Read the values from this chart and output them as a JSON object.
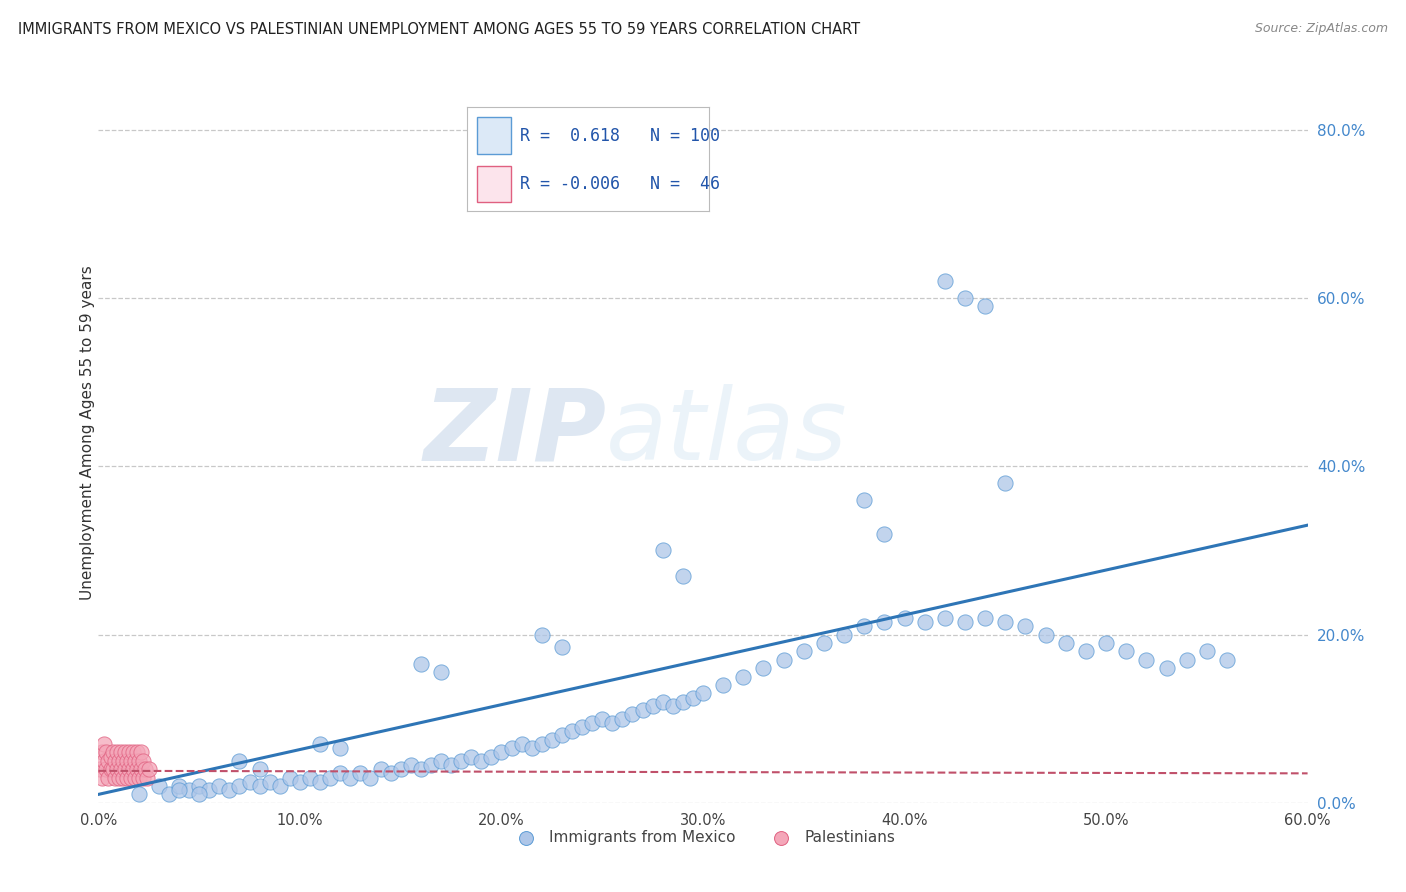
{
  "title": "IMMIGRANTS FROM MEXICO VS PALESTINIAN UNEMPLOYMENT AMONG AGES 55 TO 59 YEARS CORRELATION CHART",
  "source": "Source: ZipAtlas.com",
  "xlabel_blue": "Immigrants from Mexico",
  "xlabel_pink": "Palestinians",
  "ylabel": "Unemployment Among Ages 55 to 59 years",
  "xlim": [
    0.0,
    0.6
  ],
  "ylim": [
    0.0,
    0.88
  ],
  "xticks": [
    0.0,
    0.1,
    0.2,
    0.3,
    0.4,
    0.5,
    0.6
  ],
  "yticks": [
    0.0,
    0.2,
    0.4,
    0.6,
    0.8
  ],
  "ytick_labels": [
    "0.0%",
    "20.0%",
    "40.0%",
    "60.0%",
    "80.0%"
  ],
  "xtick_labels": [
    "0.0%",
    "10.0%",
    "20.0%",
    "30.0%",
    "40.0%",
    "50.0%",
    "60.0%"
  ],
  "R_blue": 0.618,
  "N_blue": 100,
  "R_pink": -0.006,
  "N_pink": 46,
  "watermark_zip": "ZIP",
  "watermark_atlas": "atlas",
  "blue_scatter_color": "#aec6e8",
  "blue_edge_color": "#5b9bd5",
  "pink_scatter_color": "#f4a7b9",
  "pink_edge_color": "#e06080",
  "line_blue_color": "#2e75b6",
  "line_pink_color": "#c0506a",
  "legend_blue_fill": "#dce9f7",
  "legend_pink_fill": "#fce4ec",
  "blue_scatter_x": [
    0.02,
    0.03,
    0.035,
    0.04,
    0.045,
    0.05,
    0.055,
    0.06,
    0.065,
    0.07,
    0.075,
    0.08,
    0.085,
    0.09,
    0.095,
    0.1,
    0.105,
    0.11,
    0.115,
    0.12,
    0.125,
    0.13,
    0.135,
    0.14,
    0.145,
    0.15,
    0.155,
    0.16,
    0.165,
    0.17,
    0.175,
    0.18,
    0.185,
    0.19,
    0.195,
    0.2,
    0.205,
    0.21,
    0.215,
    0.22,
    0.225,
    0.23,
    0.235,
    0.24,
    0.245,
    0.25,
    0.255,
    0.26,
    0.265,
    0.27,
    0.275,
    0.28,
    0.285,
    0.29,
    0.295,
    0.3,
    0.31,
    0.32,
    0.33,
    0.34,
    0.35,
    0.36,
    0.37,
    0.38,
    0.39,
    0.4,
    0.41,
    0.42,
    0.43,
    0.44,
    0.45,
    0.46,
    0.47,
    0.48,
    0.49,
    0.5,
    0.51,
    0.52,
    0.53,
    0.54,
    0.55,
    0.56,
    0.42,
    0.43,
    0.44,
    0.45,
    0.38,
    0.39,
    0.28,
    0.29,
    0.22,
    0.23,
    0.16,
    0.17,
    0.11,
    0.12,
    0.07,
    0.08,
    0.04,
    0.05
  ],
  "blue_scatter_y": [
    0.01,
    0.02,
    0.01,
    0.02,
    0.015,
    0.02,
    0.015,
    0.02,
    0.015,
    0.02,
    0.025,
    0.02,
    0.025,
    0.02,
    0.03,
    0.025,
    0.03,
    0.025,
    0.03,
    0.035,
    0.03,
    0.035,
    0.03,
    0.04,
    0.035,
    0.04,
    0.045,
    0.04,
    0.045,
    0.05,
    0.045,
    0.05,
    0.055,
    0.05,
    0.055,
    0.06,
    0.065,
    0.07,
    0.065,
    0.07,
    0.075,
    0.08,
    0.085,
    0.09,
    0.095,
    0.1,
    0.095,
    0.1,
    0.105,
    0.11,
    0.115,
    0.12,
    0.115,
    0.12,
    0.125,
    0.13,
    0.14,
    0.15,
    0.16,
    0.17,
    0.18,
    0.19,
    0.2,
    0.21,
    0.215,
    0.22,
    0.215,
    0.22,
    0.215,
    0.22,
    0.215,
    0.21,
    0.2,
    0.19,
    0.18,
    0.19,
    0.18,
    0.17,
    0.16,
    0.17,
    0.18,
    0.17,
    0.62,
    0.6,
    0.59,
    0.38,
    0.36,
    0.32,
    0.3,
    0.27,
    0.2,
    0.185,
    0.165,
    0.155,
    0.07,
    0.065,
    0.05,
    0.04,
    0.015,
    0.01
  ],
  "pink_scatter_x": [
    0.001,
    0.002,
    0.002,
    0.003,
    0.003,
    0.004,
    0.004,
    0.005,
    0.005,
    0.006,
    0.006,
    0.007,
    0.007,
    0.008,
    0.008,
    0.009,
    0.009,
    0.01,
    0.01,
    0.011,
    0.011,
    0.012,
    0.012,
    0.013,
    0.013,
    0.014,
    0.014,
    0.015,
    0.015,
    0.016,
    0.016,
    0.017,
    0.017,
    0.018,
    0.018,
    0.019,
    0.019,
    0.02,
    0.02,
    0.021,
    0.021,
    0.022,
    0.022,
    0.023,
    0.024,
    0.025
  ],
  "pink_scatter_y": [
    0.04,
    0.06,
    0.03,
    0.07,
    0.05,
    0.06,
    0.04,
    0.05,
    0.03,
    0.04,
    0.055,
    0.04,
    0.06,
    0.03,
    0.05,
    0.04,
    0.06,
    0.03,
    0.05,
    0.04,
    0.06,
    0.03,
    0.05,
    0.04,
    0.06,
    0.03,
    0.05,
    0.04,
    0.06,
    0.03,
    0.05,
    0.04,
    0.06,
    0.03,
    0.05,
    0.04,
    0.06,
    0.03,
    0.05,
    0.04,
    0.06,
    0.03,
    0.05,
    0.04,
    0.03,
    0.04
  ],
  "blue_trendline_x": [
    0.0,
    0.6
  ],
  "blue_trendline_y": [
    0.01,
    0.33
  ],
  "pink_trendline_x": [
    0.0,
    0.6
  ],
  "pink_trendline_y": [
    0.038,
    0.035
  ]
}
